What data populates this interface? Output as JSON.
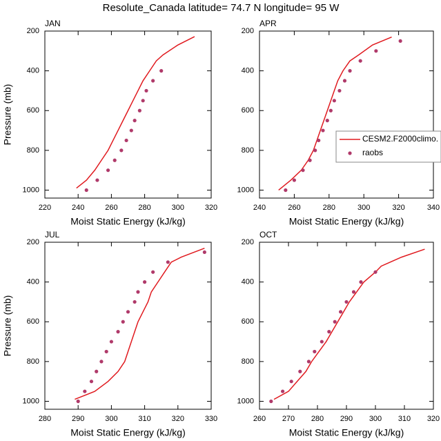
{
  "title": "Resolute_Canada  latitude= 74.7 N longitude= 95 W",
  "chart_data": [
    {
      "type": "line",
      "title": "JAN",
      "xlabel": "Moist Static Energy (kJ/kg)",
      "ylabel": "Pressure (mb)",
      "xlim": [
        220,
        320
      ],
      "xticks": [
        220,
        240,
        260,
        280,
        300,
        320
      ],
      "ylim": [
        1040,
        200
      ],
      "yticks": [
        200,
        400,
        600,
        800,
        1000
      ],
      "series": [
        {
          "type": "line",
          "color": "#e0191e",
          "x": [
            239,
            245,
            250,
            254,
            258,
            261,
            264,
            267,
            270,
            273,
            276,
            279,
            283,
            287,
            291,
            300,
            310
          ],
          "y": [
            990,
            950,
            900,
            850,
            800,
            750,
            700,
            650,
            600,
            550,
            500,
            450,
            400,
            350,
            320,
            270,
            228
          ]
        },
        {
          "type": "scatter",
          "color": "#b03a6a",
          "x": [
            245,
            251.5,
            258,
            262,
            266,
            269,
            272,
            274,
            277,
            279,
            281,
            285,
            290
          ],
          "y": [
            1000,
            950,
            900,
            850,
            800,
            750,
            700,
            650,
            600,
            550,
            500,
            450,
            400
          ]
        }
      ]
    },
    {
      "type": "line",
      "title": "APR",
      "xlabel": "Moist Static Energy (kJ/kg)",
      "xlim": [
        240,
        340
      ],
      "xticks": [
        240,
        260,
        280,
        300,
        320,
        340
      ],
      "ylim": [
        1040,
        200
      ],
      "yticks": [
        200,
        400,
        600,
        800,
        1000
      ],
      "legend": "right",
      "series": [
        {
          "type": "line",
          "name": "CESM2.F2000climo.",
          "color": "#e0191e",
          "x": [
            251,
            258,
            264,
            268,
            271,
            273,
            275,
            277,
            279,
            281,
            283,
            285,
            288,
            292,
            297,
            305,
            316
          ],
          "y": [
            1000,
            950,
            900,
            850,
            800,
            750,
            700,
            650,
            600,
            550,
            500,
            450,
            400,
            350,
            320,
            270,
            230
          ]
        },
        {
          "type": "scatter",
          "name": "raobs",
          "color": "#b03a6a",
          "x": [
            255,
            260,
            265,
            269,
            272,
            274,
            276.5,
            279,
            281,
            283,
            286,
            289,
            292,
            298,
            307,
            321
          ],
          "y": [
            1000,
            950,
            900,
            850,
            800,
            750,
            700,
            650,
            600,
            550,
            500,
            450,
            400,
            350,
            300,
            250
          ]
        }
      ]
    },
    {
      "type": "line",
      "title": "JUL",
      "xlabel": "Moist Static Energy (kJ/kg)",
      "ylabel": "Pressure (mb)",
      "xlim": [
        280,
        330
      ],
      "xticks": [
        280,
        290,
        300,
        310,
        320,
        330
      ],
      "ylim": [
        1040,
        200
      ],
      "yticks": [
        200,
        400,
        600,
        800,
        1000
      ],
      "series": [
        {
          "type": "line",
          "color": "#e0191e",
          "x": [
            289,
            295,
            299,
            302,
            304,
            305,
            306,
            307,
            308,
            309.5,
            311,
            312,
            314,
            316,
            318,
            321,
            328
          ],
          "y": [
            990,
            950,
            900,
            850,
            800,
            750,
            700,
            650,
            600,
            550,
            500,
            450,
            400,
            350,
            300,
            275,
            230
          ]
        },
        {
          "type": "scatter",
          "color": "#b03a6a",
          "x": [
            290,
            292,
            294,
            295.5,
            297,
            298.5,
            300,
            302,
            303.5,
            305,
            307,
            308,
            310,
            312.5,
            317,
            328
          ],
          "y": [
            1000,
            950,
            900,
            850,
            800,
            750,
            700,
            650,
            600,
            550,
            500,
            450,
            400,
            350,
            300,
            250
          ]
        }
      ]
    },
    {
      "type": "line",
      "title": "OCT",
      "xlabel": "Moist Static Energy (kJ/kg)",
      "xlim": [
        260,
        320
      ],
      "xticks": [
        260,
        270,
        280,
        290,
        300,
        310,
        320
      ],
      "ylim": [
        1040,
        200
      ],
      "yticks": [
        200,
        400,
        600,
        800,
        1000
      ],
      "series": [
        {
          "type": "line",
          "color": "#e0191e",
          "x": [
            265,
            270,
            273,
            276,
            278,
            280.5,
            283,
            285,
            287,
            289,
            291,
            293.5,
            296,
            300,
            302,
            309,
            317
          ],
          "y": [
            990,
            950,
            900,
            850,
            800,
            750,
            700,
            650,
            600,
            550,
            500,
            450,
            400,
            350,
            320,
            275,
            235
          ]
        },
        {
          "type": "scatter",
          "color": "#b03a6a",
          "x": [
            264,
            268,
            271,
            274,
            277,
            279,
            281.5,
            284,
            286,
            288,
            290,
            292.5,
            295,
            300
          ],
          "y": [
            1000,
            950,
            900,
            850,
            800,
            750,
            700,
            650,
            600,
            550,
            500,
            450,
            400,
            350
          ]
        }
      ]
    }
  ]
}
